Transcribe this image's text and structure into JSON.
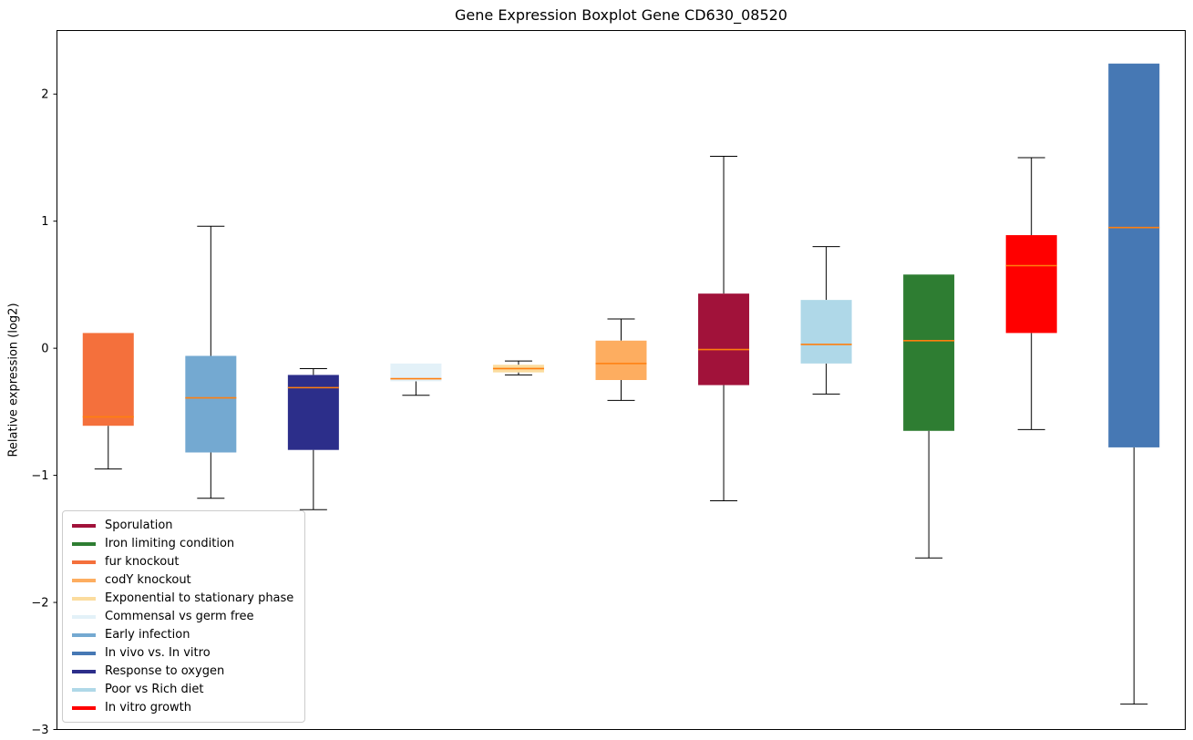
{
  "chart_data": {
    "type": "boxplot",
    "title": "Gene Expression Boxplot Gene CD630_08520",
    "xlabel": "",
    "ylabel": "Relative expression (log2)",
    "ylim": [
      -3,
      2.5
    ],
    "yticks": [
      2,
      1,
      0,
      -1,
      -2,
      -3
    ],
    "grid": false,
    "legend_position": "lower-left",
    "median_color": "#ff7f0e",
    "whisker_color": "#000000",
    "boxes": [
      {
        "label": "fur knockout",
        "color": "#f4703c",
        "whisker_low": -0.95,
        "q1": -0.61,
        "median": -0.54,
        "q3": 0.12,
        "whisker_high": 0.12
      },
      {
        "label": "Early infection",
        "color": "#74a9d1",
        "whisker_low": -1.18,
        "q1": -0.82,
        "median": -0.39,
        "q3": -0.06,
        "whisker_high": 0.96
      },
      {
        "label": "Response to oxygen",
        "color": "#2c2e8a",
        "whisker_low": -1.27,
        "q1": -0.8,
        "median": -0.31,
        "q3": -0.21,
        "whisker_high": -0.16
      },
      {
        "label": "Commensal vs germ free",
        "color": "#e3f1f8",
        "whisker_low": -0.37,
        "q1": -0.26,
        "median": -0.24,
        "q3": -0.12,
        "whisker_high": -0.12
      },
      {
        "label": "Exponential to stationary phase",
        "color": "#fbdc9e",
        "whisker_low": -0.21,
        "q1": -0.19,
        "median": -0.16,
        "q3": -0.13,
        "whisker_high": -0.1
      },
      {
        "label": "codY knockout",
        "color": "#fdad60",
        "whisker_low": -0.41,
        "q1": -0.25,
        "median": -0.12,
        "q3": 0.06,
        "whisker_high": 0.23
      },
      {
        "label": "Sporulation",
        "color": "#a1123a",
        "whisker_low": -1.2,
        "q1": -0.29,
        "median": -0.01,
        "q3": 0.43,
        "whisker_high": 1.51
      },
      {
        "label": "Poor vs Rich diet",
        "color": "#afd8e8",
        "whisker_low": -0.36,
        "q1": -0.12,
        "median": 0.03,
        "q3": 0.38,
        "whisker_high": 0.8
      },
      {
        "label": "Iron limiting condition",
        "color": "#2e7d32",
        "whisker_low": -1.65,
        "q1": -0.65,
        "median": 0.06,
        "q3": 0.58,
        "whisker_high": 0.58
      },
      {
        "label": "In vitro growth",
        "color": "#ff0000",
        "whisker_low": -0.64,
        "q1": 0.12,
        "median": 0.65,
        "q3": 0.89,
        "whisker_high": 1.5
      },
      {
        "label": "In vivo vs. In vitro",
        "color": "#4678b4",
        "whisker_low": -2.8,
        "q1": -0.78,
        "median": 0.95,
        "q3": 2.24,
        "whisker_high": 2.24
      }
    ],
    "legend": [
      {
        "label": "Sporulation",
        "color": "#a1123a"
      },
      {
        "label": "Iron limiting condition",
        "color": "#2e7d32"
      },
      {
        "label": "fur knockout",
        "color": "#f4703c"
      },
      {
        "label": "codY knockout",
        "color": "#fdad60"
      },
      {
        "label": "Exponential to stationary phase",
        "color": "#fbdc9e"
      },
      {
        "label": "Commensal vs germ free",
        "color": "#e3f1f8"
      },
      {
        "label": "Early infection",
        "color": "#74a9d1"
      },
      {
        "label": "In vivo vs. In vitro",
        "color": "#4678b4"
      },
      {
        "label": "Response to oxygen",
        "color": "#2c2e8a"
      },
      {
        "label": "Poor vs Rich diet",
        "color": "#afd8e8"
      },
      {
        "label": "In vitro growth",
        "color": "#ff0000"
      }
    ]
  }
}
